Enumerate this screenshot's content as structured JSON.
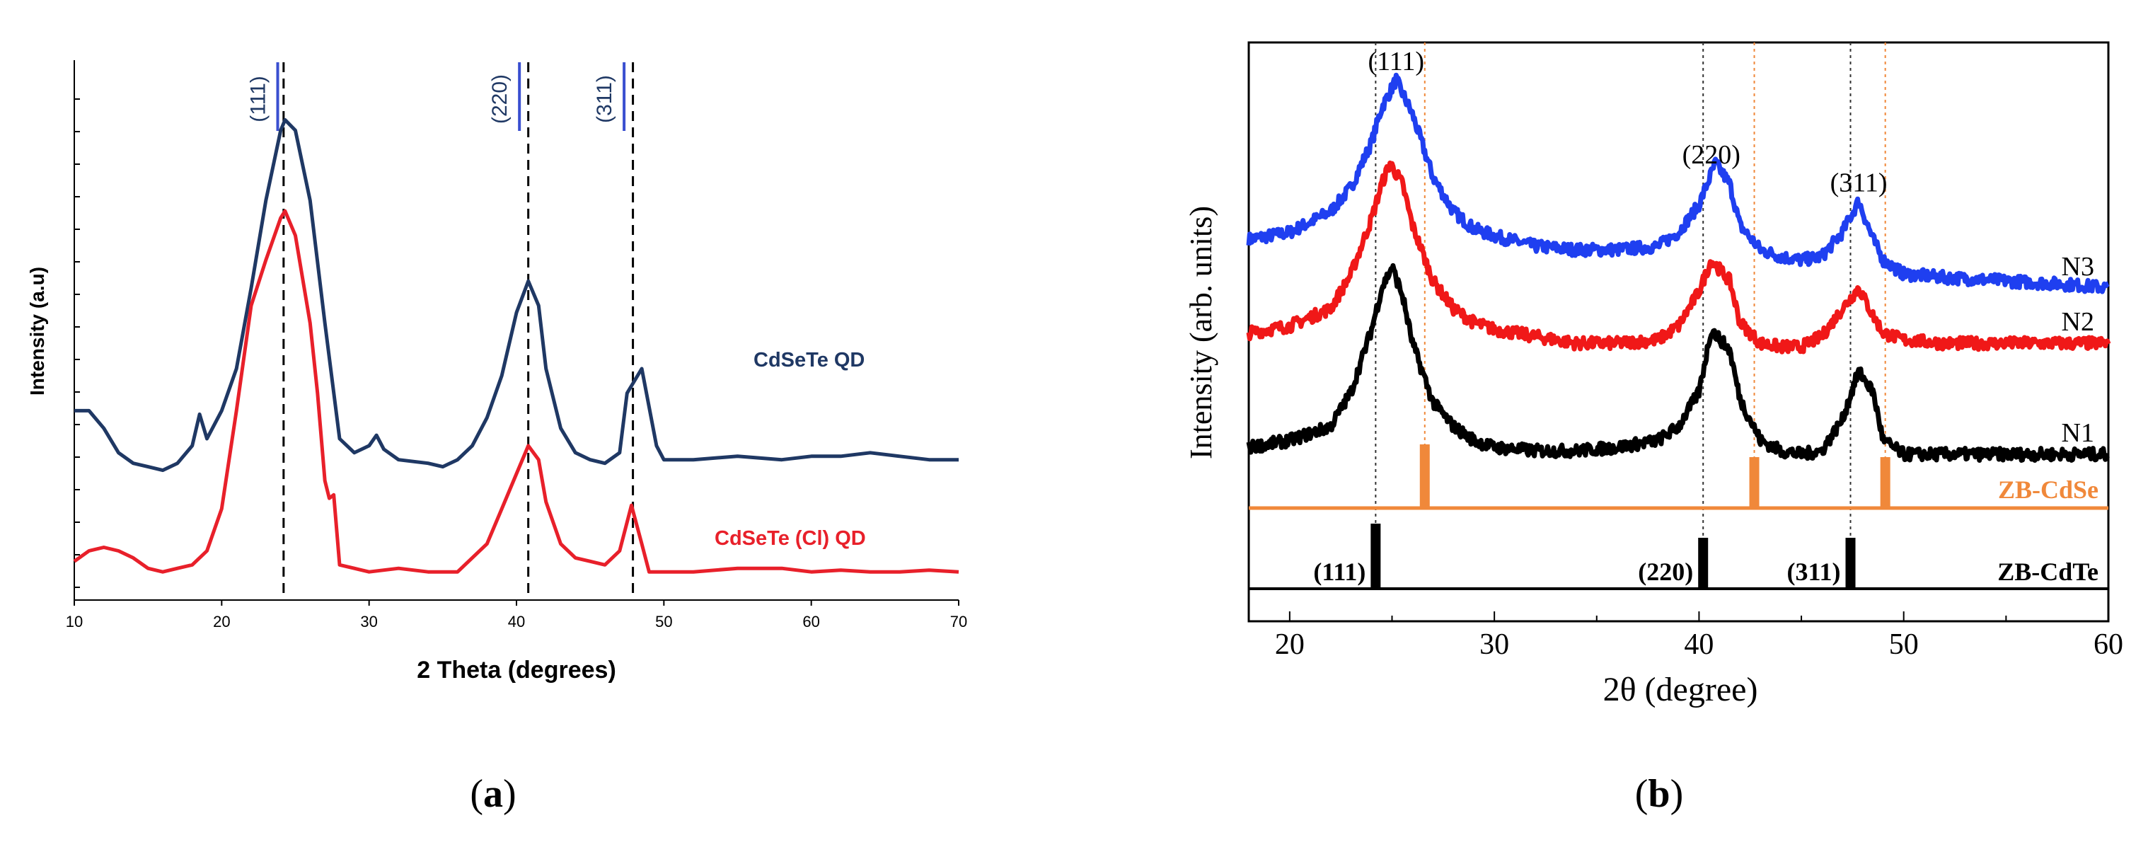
{
  "chart_data": [
    {
      "panel_label": "(a)",
      "type": "line",
      "xlabel": "2 Theta (degrees)",
      "ylabel": "Intensity (a.u)",
      "xlim": [
        10,
        70
      ],
      "x_ticks": [
        10,
        20,
        30,
        40,
        50,
        60,
        70
      ],
      "y_ticks_labeled": false,
      "grid": false,
      "reference_lines_x": [
        24.2,
        40.8,
        47.9
      ],
      "reflections": [
        {
          "label": "(111)",
          "x": 23.8
        },
        {
          "label": "(220)",
          "x": 40.2
        },
        {
          "label": "(311)",
          "x": 47.3
        }
      ],
      "series": [
        {
          "name": "CdSeTe QD",
          "color": "#1f3864",
          "x": [
            10,
            11,
            12,
            13,
            14,
            15,
            16,
            17,
            18,
            18.5,
            19,
            20,
            21,
            22,
            23,
            24,
            24.3,
            25,
            26,
            27,
            28,
            29,
            30,
            30.5,
            31,
            32,
            34,
            35,
            36,
            37,
            38,
            39,
            40,
            40.8,
            41.5,
            42,
            43,
            44,
            45,
            46,
            47,
            47.5,
            48.5,
            49.5,
            50,
            52,
            55,
            58,
            60,
            62,
            64,
            66,
            68,
            70
          ],
          "y": [
            0.5,
            0.5,
            0.45,
            0.38,
            0.35,
            0.34,
            0.33,
            0.35,
            0.4,
            0.49,
            0.42,
            0.5,
            0.62,
            0.85,
            1.1,
            1.3,
            1.33,
            1.3,
            1.1,
            0.75,
            0.42,
            0.38,
            0.4,
            0.43,
            0.39,
            0.36,
            0.35,
            0.34,
            0.36,
            0.4,
            0.48,
            0.6,
            0.78,
            0.87,
            0.8,
            0.62,
            0.45,
            0.38,
            0.36,
            0.35,
            0.38,
            0.55,
            0.62,
            0.4,
            0.36,
            0.36,
            0.37,
            0.36,
            0.37,
            0.37,
            0.38,
            0.37,
            0.36,
            0.36
          ]
        },
        {
          "name": "CdSeTe (Cl) QD",
          "color": "#e8202a",
          "x": [
            10,
            11,
            12,
            13,
            14,
            15,
            16,
            17,
            18,
            19,
            20,
            21,
            22,
            23,
            24,
            24.3,
            25,
            26,
            26.5,
            27,
            27.3,
            27.6,
            28,
            29,
            30,
            31,
            32,
            34,
            36,
            38,
            39,
            40,
            40.8,
            41.5,
            42,
            43,
            44,
            45,
            46,
            47,
            47.8,
            48.5,
            49,
            49.5,
            50,
            52,
            55,
            58,
            60,
            62,
            64,
            66,
            68,
            70
          ],
          "y": [
            0.07,
            0.1,
            0.11,
            0.1,
            0.08,
            0.05,
            0.04,
            0.05,
            0.06,
            0.1,
            0.22,
            0.5,
            0.8,
            0.93,
            1.05,
            1.07,
            1.0,
            0.75,
            0.55,
            0.3,
            0.25,
            0.26,
            0.06,
            0.05,
            0.04,
            0.045,
            0.05,
            0.04,
            0.04,
            0.12,
            0.22,
            0.32,
            0.4,
            0.36,
            0.24,
            0.12,
            0.08,
            0.07,
            0.06,
            0.1,
            0.23,
            0.12,
            0.04,
            0.04,
            0.04,
            0.04,
            0.05,
            0.05,
            0.04,
            0.045,
            0.04,
            0.04,
            0.045,
            0.04
          ]
        }
      ]
    },
    {
      "panel_label": "(b)",
      "type": "scatter",
      "xlabel": "2θ (degree)",
      "ylabel": "Intensity (arb. units)",
      "xlim": [
        18,
        60
      ],
      "x_ticks": [
        20,
        30,
        40,
        50,
        60
      ],
      "y_ticks_labeled": false,
      "grid": false,
      "reference_lines_x_black": [
        24.2,
        40.2,
        47.4
      ],
      "reference_lines_x_orange": [
        26.6,
        42.7,
        49.1
      ],
      "peak_labels": [
        {
          "label": "(111)",
          "x": 25.2
        },
        {
          "label": "(220)",
          "x": 40.6
        },
        {
          "label": "(311)",
          "x": 47.8
        }
      ],
      "references": [
        {
          "name": "ZB-CdSe",
          "color": "#f0883a",
          "positions": [
            26.6,
            42.7,
            49.1
          ]
        },
        {
          "name": "ZB-CdTe",
          "color": "#000000",
          "positions": [
            24.2,
            40.2,
            47.4
          ],
          "labels": [
            "(111)",
            "(220)",
            "(311)"
          ]
        }
      ],
      "series": [
        {
          "name": "N3",
          "color": "#1f3ff0",
          "x": [
            18,
            20,
            22,
            23,
            24,
            24.5,
            25.2,
            26,
            27,
            28,
            29,
            30,
            32,
            34,
            36,
            38,
            39,
            40,
            40.8,
            41.5,
            42,
            43,
            44,
            45,
            46,
            47,
            47.8,
            48.5,
            49,
            50,
            52,
            55,
            58,
            60
          ],
          "y": [
            0.82,
            0.84,
            0.9,
            0.97,
            1.1,
            1.2,
            1.28,
            1.18,
            1.0,
            0.9,
            0.85,
            0.83,
            0.8,
            0.79,
            0.79,
            0.8,
            0.84,
            0.92,
            1.04,
            0.98,
            0.86,
            0.79,
            0.77,
            0.76,
            0.77,
            0.84,
            0.93,
            0.82,
            0.76,
            0.72,
            0.71,
            0.7,
            0.69,
            0.68
          ]
        },
        {
          "name": "N2",
          "color": "#f01818",
          "x": [
            18,
            20,
            22,
            23,
            24,
            24.5,
            24.9,
            25.5,
            26,
            27,
            28,
            29,
            30,
            32,
            34,
            36,
            38,
            39,
            40,
            40.6,
            41.5,
            42,
            43,
            44,
            45,
            46,
            47,
            47.8,
            48.5,
            49,
            50,
            52,
            55,
            58,
            60
          ],
          "y": [
            0.55,
            0.57,
            0.62,
            0.72,
            0.88,
            0.98,
            1.04,
            0.98,
            0.86,
            0.7,
            0.62,
            0.58,
            0.56,
            0.54,
            0.52,
            0.52,
            0.53,
            0.57,
            0.67,
            0.76,
            0.7,
            0.58,
            0.52,
            0.51,
            0.51,
            0.54,
            0.62,
            0.68,
            0.6,
            0.55,
            0.53,
            0.52,
            0.52,
            0.52,
            0.52
          ]
        },
        {
          "name": "N1",
          "color": "#000000",
          "x": [
            18,
            20,
            22,
            23,
            24,
            24.5,
            25,
            25.5,
            26,
            27,
            28,
            29,
            30,
            32,
            34,
            36,
            38,
            39,
            40,
            40.6,
            41.5,
            42,
            43,
            44,
            45,
            46,
            47,
            47.8,
            48.5,
            49,
            50,
            52,
            55,
            58,
            60
          ],
          "y": [
            0.22,
            0.24,
            0.28,
            0.38,
            0.56,
            0.68,
            0.74,
            0.66,
            0.52,
            0.35,
            0.28,
            0.24,
            0.22,
            0.21,
            0.21,
            0.22,
            0.24,
            0.28,
            0.38,
            0.56,
            0.5,
            0.36,
            0.24,
            0.21,
            0.2,
            0.21,
            0.3,
            0.44,
            0.38,
            0.24,
            0.2,
            0.2,
            0.2,
            0.2,
            0.2
          ]
        }
      ]
    }
  ]
}
